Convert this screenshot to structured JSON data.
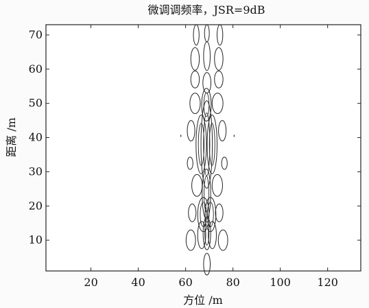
{
  "chart_data": {
    "type": "contour",
    "title": "微调调频率，JSR=9dB",
    "xlabel": "方位 /m",
    "ylabel": "距离 /m",
    "xlim": [
      1,
      134
    ],
    "ylim": [
      1,
      73
    ],
    "x_ticks": [
      20,
      40,
      60,
      80,
      100,
      120
    ],
    "y_ticks": [
      10,
      20,
      30,
      40,
      50,
      60,
      70
    ],
    "x_tick_labels": [
      "20",
      "40",
      "60",
      "80",
      "100",
      "120"
    ],
    "y_tick_labels": [
      "10",
      "20",
      "30",
      "40",
      "50",
      "60",
      "70"
    ],
    "grid": false,
    "legend": "none",
    "contour_color": "#222222",
    "background_color": "#ffffff",
    "contour_features": [
      {
        "kind": "ellipse",
        "x": 64.5,
        "y": 70.0,
        "rx": 1.2,
        "ry": 3.0
      },
      {
        "kind": "ellipse",
        "x": 69.0,
        "y": 70.5,
        "rx": 1.0,
        "ry": 2.5
      },
      {
        "kind": "ellipse",
        "x": 74.5,
        "y": 70.0,
        "rx": 1.2,
        "ry": 3.0
      },
      {
        "kind": "ellipse",
        "x": 64.0,
        "y": 63.0,
        "rx": 1.8,
        "ry": 3.3
      },
      {
        "kind": "ellipse",
        "x": 69.0,
        "y": 63.8,
        "rx": 1.4,
        "ry": 4.2
      },
      {
        "kind": "ellipse",
        "x": 74.0,
        "y": 63.0,
        "rx": 1.8,
        "ry": 3.3
      },
      {
        "kind": "ellipse",
        "x": 64.0,
        "y": 57.0,
        "rx": 1.8,
        "ry": 2.5
      },
      {
        "kind": "ellipse",
        "x": 69.0,
        "y": 56.0,
        "rx": 1.7,
        "ry": 3.0
      },
      {
        "kind": "ellipse",
        "x": 74.0,
        "y": 57.0,
        "rx": 1.8,
        "ry": 2.5
      },
      {
        "kind": "ellipse",
        "x": 64.0,
        "y": 50.0,
        "rx": 2.2,
        "ry": 3.0
      },
      {
        "kind": "ellipse",
        "x": 68.8,
        "y": 49.6,
        "rx": 2.0,
        "ry": 4.8
      },
      {
        "kind": "ellipse",
        "x": 73.5,
        "y": 50.0,
        "rx": 2.3,
        "ry": 3.0
      },
      {
        "kind": "ellipse",
        "x": 62.3,
        "y": 42.0,
        "rx": 1.6,
        "ry": 3.0
      },
      {
        "kind": "ellipse",
        "x": 66.6,
        "y": 38.0,
        "rx": 2.2,
        "ry": 8.6
      },
      {
        "kind": "ellipse",
        "x": 68.9,
        "y": 38.0,
        "rx": 2.4,
        "ry": 12.8
      },
      {
        "kind": "ellipse",
        "x": 71.2,
        "y": 38.0,
        "rx": 2.1,
        "ry": 8.6
      },
      {
        "kind": "ellipse",
        "x": 75.5,
        "y": 42.0,
        "rx": 1.6,
        "ry": 3.0
      },
      {
        "kind": "ellipse",
        "x": 61.9,
        "y": 32.5,
        "rx": 1.2,
        "ry": 1.8
      },
      {
        "kind": "ellipse",
        "x": 76.4,
        "y": 32.5,
        "rx": 1.2,
        "ry": 1.8
      },
      {
        "kind": "ellipse",
        "x": 64.8,
        "y": 26.0,
        "rx": 2.2,
        "ry": 3.2
      },
      {
        "kind": "ellipse",
        "x": 68.8,
        "y": 23.5,
        "rx": 1.8,
        "ry": 7.3
      },
      {
        "kind": "ellipse",
        "x": 73.4,
        "y": 26.0,
        "rx": 2.2,
        "ry": 3.2
      },
      {
        "kind": "ellipse",
        "x": 62.8,
        "y": 18.0,
        "rx": 1.6,
        "ry": 2.6
      },
      {
        "kind": "ellipse",
        "x": 67.5,
        "y": 17.5,
        "rx": 2.4,
        "ry": 5.0
      },
      {
        "kind": "ellipse",
        "x": 70.5,
        "y": 17.5,
        "rx": 2.3,
        "ry": 5.0
      },
      {
        "kind": "ellipse",
        "x": 74.2,
        "y": 18.0,
        "rx": 1.6,
        "ry": 2.6
      },
      {
        "kind": "ellipse",
        "x": 62.2,
        "y": 10.0,
        "rx": 2.0,
        "ry": 3.0
      },
      {
        "kind": "ellipse",
        "x": 66.8,
        "y": 11.5,
        "rx": 1.7,
        "ry": 4.0
      },
      {
        "kind": "ellipse",
        "x": 69.0,
        "y": 12.0,
        "rx": 1.6,
        "ry": 4.8
      },
      {
        "kind": "ellipse",
        "x": 71.3,
        "y": 11.5,
        "rx": 1.7,
        "ry": 4.0
      },
      {
        "kind": "ellipse",
        "x": 75.8,
        "y": 10.0,
        "rx": 2.0,
        "ry": 3.0
      },
      {
        "kind": "ellipse",
        "x": 69.0,
        "y": 3.0,
        "rx": 1.4,
        "ry": 3.2
      },
      {
        "kind": "line",
        "x1": 58.0,
        "y1": 40.8,
        "x2": 58.0,
        "y2": 40.2
      },
      {
        "kind": "line",
        "x1": 80.5,
        "y1": 40.8,
        "x2": 80.5,
        "y2": 40.2
      }
    ]
  }
}
